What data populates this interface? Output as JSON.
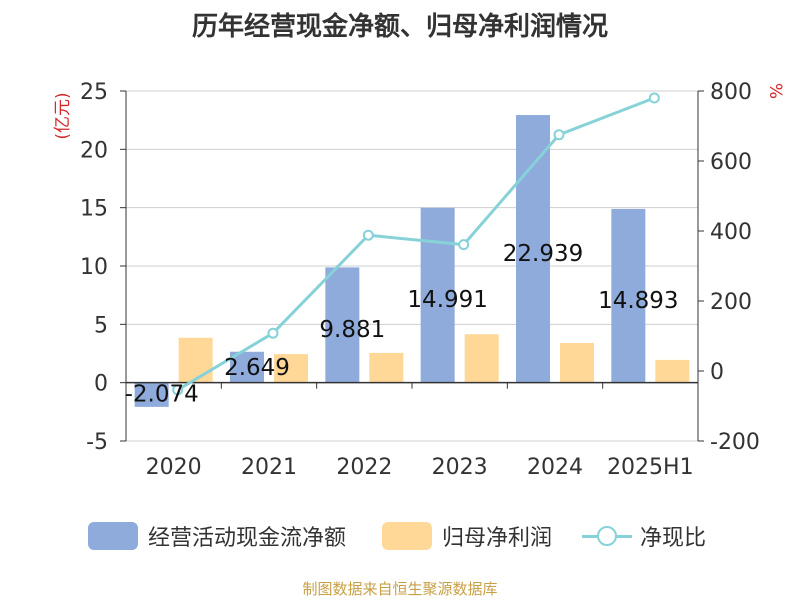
{
  "title": "历年经营现金净额、归母净利润情况",
  "source": "制图数据来自恒生聚源数据库",
  "colors": {
    "bar_cash": "#8eabdc",
    "bar_profit": "#ffd898",
    "line_ratio": "#86d2d8",
    "axis_unit": "#d4282a",
    "text": "#333333",
    "grid": "#cfcfcf",
    "source": "#c8a046"
  },
  "legend": [
    {
      "key": "cash",
      "label": "经营活动现金流净额"
    },
    {
      "key": "profit",
      "label": "归母净利润"
    },
    {
      "key": "ratio",
      "label": "净现比"
    }
  ],
  "chart_data": {
    "type": "bar",
    "title": "历年经营现金净额、归母净利润情况",
    "categories": [
      "2020",
      "2021",
      "2022",
      "2023",
      "2024",
      "2025H1"
    ],
    "y_left": {
      "label": "(亿元)",
      "ylim": [
        -5,
        25
      ],
      "ticks": [
        -5,
        0,
        5,
        10,
        15,
        20,
        25
      ]
    },
    "y_right": {
      "label": "%",
      "ylim": [
        -200,
        800
      ],
      "ticks": [
        -200,
        0,
        200,
        400,
        600,
        800
      ]
    },
    "grid": true,
    "legend_position": "bottom",
    "series": [
      {
        "name": "经营活动现金流净额",
        "type": "bar",
        "axis": "left",
        "values": [
          -2.074,
          2.649,
          9.881,
          14.991,
          22.939,
          14.893
        ],
        "labels": [
          "-2.074",
          "2.649",
          "9.881",
          "14.991",
          "22.939",
          "14.893"
        ]
      },
      {
        "name": "归母净利润",
        "type": "bar",
        "axis": "left",
        "values": [
          3.85,
          2.45,
          2.55,
          4.15,
          3.4,
          1.95
        ]
      },
      {
        "name": "净现比",
        "type": "line",
        "axis": "right",
        "values": [
          -54,
          108,
          388,
          361,
          675,
          780
        ]
      }
    ]
  }
}
